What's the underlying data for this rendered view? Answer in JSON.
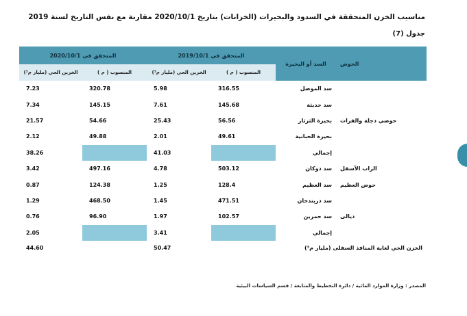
{
  "title": "مناسيب الخزن المتحققة في السدود والبحيرات (الخزانات) بتاريخ 2020/10/1 مقارنة مع نفس التاريخ لسنة 2019",
  "table_no": "جدول (7)",
  "headers": {
    "basin": "الحوض",
    "dam": "السد أو البحيرة",
    "period_2019": "المتحقق في 2019/10/1",
    "period_2020": "المتحقق في 2020/10/1",
    "level": "المنسوب ( م )",
    "storage": "الخزين الحي (مليار م³)"
  },
  "rows": [
    {
      "basin": "",
      "dam": "سد الموصل",
      "l19": "316.55",
      "s19": "5.98",
      "l20": "320.78",
      "s20": "7.23"
    },
    {
      "basin": "",
      "dam": "سد حديثة",
      "l19": "145.68",
      "s19": "7.61",
      "l20": "145.15",
      "s20": "7.34"
    },
    {
      "basin": "حوضي دجلة والفرات",
      "dam": "بحيرة الثرثار",
      "l19": "56.56",
      "s19": "25.43",
      "l20": "54.66",
      "s20": "21.57"
    },
    {
      "basin": "",
      "dam": "بحيرة الحبانية",
      "l19": "49.61",
      "s19": "2.01",
      "l20": "49.88",
      "s20": "2.12"
    },
    {
      "basin": "",
      "dam": "إجمالي",
      "l19": "",
      "s19": "41.03",
      "l20": "",
      "s20": "38.26"
    },
    {
      "basin": "الزاب الأسفل",
      "dam": "سد دوكان",
      "l19": "503.12",
      "s19": "4.78",
      "l20": "497.16",
      "s20": "3.42"
    },
    {
      "basin": "حوض العظيم",
      "dam": "سد العظيم",
      "l19": "128.4",
      "s19": "1.25",
      "l20": "124.38",
      "s20": "0.87"
    },
    {
      "basin": "",
      "dam": "سد دربندخان",
      "l19": "471.51",
      "s19": "1.45",
      "l20": "468.50",
      "s20": "1.29"
    },
    {
      "basin": "ديالى",
      "dam": "سد حمرين",
      "l19": "102.57",
      "s19": "1.97",
      "l20": "96.90",
      "s20": "0.76"
    },
    {
      "basin": "",
      "dam": "إجمالي",
      "l19": "",
      "s19": "3.41",
      "l20": "",
      "s20": "2.05"
    }
  ],
  "grand_total": {
    "label": "الخزن الحي لغاية المنافذ السفلى (مليار م³)",
    "s19": "50.47",
    "s20": "44.60"
  },
  "source": "المصدر : وزارة الموارد المائية / دائرة التخطيط والمتابعة / قسم السياسات البيئية",
  "colors": {
    "header": "#4e9bb3",
    "subheader": "#dcebf2",
    "shade": "#8ec9dc",
    "side_tab": "#3a8fa8"
  }
}
